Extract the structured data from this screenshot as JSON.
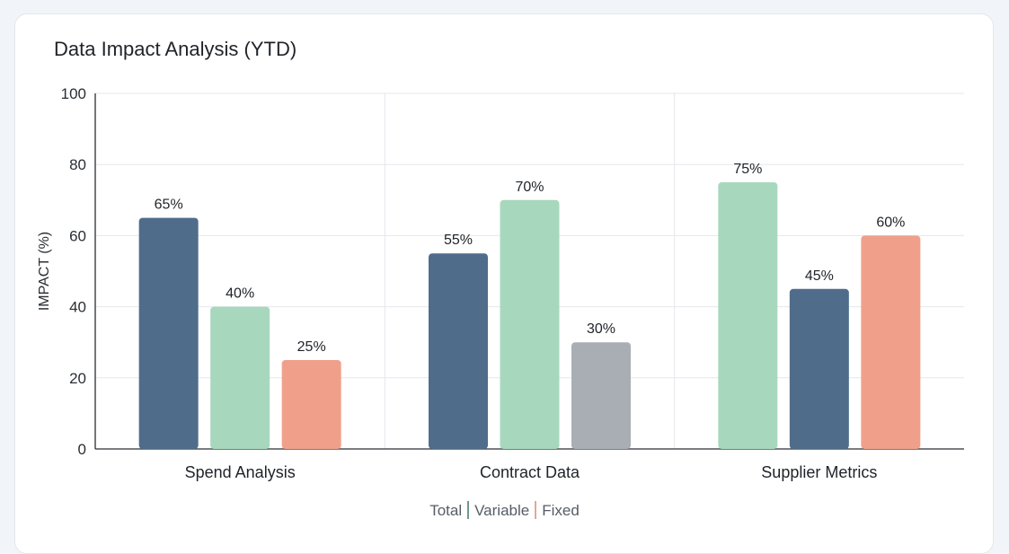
{
  "chart_data": {
    "type": "bar",
    "title": "Data Impact Analysis (YTD)",
    "xlabel": "",
    "ylabel": "IMPACT (%)",
    "ylim": [
      0,
      100
    ],
    "yticks": [
      0,
      20,
      40,
      60,
      80,
      100
    ],
    "grid": true,
    "legend_position": "bottom",
    "legend": [
      "Total",
      "Variable",
      "Fixed"
    ],
    "legend_separator_colors": [
      "#6f9a8a",
      "#e0a898"
    ],
    "categories": [
      "Spend Analysis",
      "Contract Data",
      "Supplier Metrics"
    ],
    "bars": [
      [
        {
          "value": 65,
          "label": "65%",
          "color": "#4f6d8a"
        },
        {
          "value": 40,
          "label": "40%",
          "color": "#a7d8bd"
        },
        {
          "value": 25,
          "label": "25%",
          "color": "#f0a08a"
        }
      ],
      [
        {
          "value": 55,
          "label": "55%",
          "color": "#4f6d8a"
        },
        {
          "value": 70,
          "label": "70%",
          "color": "#a7d8bd"
        },
        {
          "value": 30,
          "label": "30%",
          "color": "#a9aeb5"
        }
      ],
      [
        {
          "value": 75,
          "label": "75%",
          "color": "#a7d8bd"
        },
        {
          "value": 45,
          "label": "45%",
          "color": "#4f6d8a"
        },
        {
          "value": 60,
          "label": "60%",
          "color": "#f0a08a"
        }
      ]
    ]
  }
}
